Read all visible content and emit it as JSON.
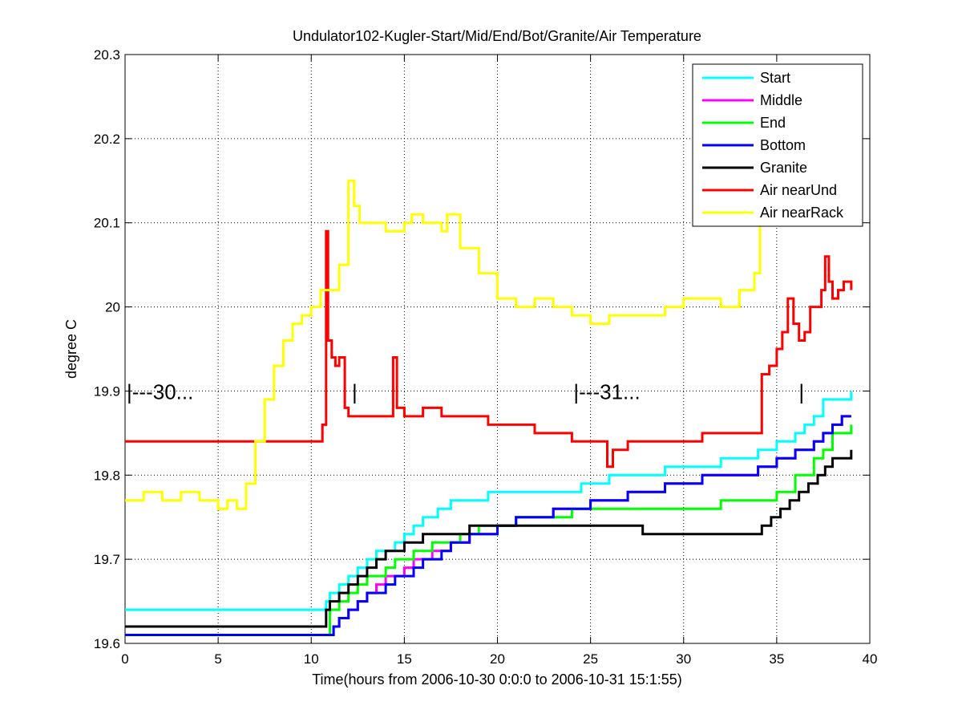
{
  "chart_data": {
    "type": "line",
    "title": "Undulator102-Kugler-Start/Mid/End/Bot/Granite/Air Temperature",
    "xlabel": "Time(hours from 2006-10-30 0:0:0 to 2006-10-31 15:1:55)",
    "ylabel": "degree C",
    "xlim": [
      0,
      40
    ],
    "ylim": [
      19.6,
      20.3
    ],
    "xticks": [
      0,
      5,
      10,
      15,
      20,
      25,
      30,
      35,
      40
    ],
    "xtick_labels": [
      "0",
      "5",
      "10",
      "15",
      "20",
      "25",
      "30",
      "35",
      "40"
    ],
    "yticks": [
      19.6,
      19.7,
      19.8,
      19.9,
      20,
      20.1,
      20.2,
      20.3
    ],
    "ytick_labels": [
      "19.6",
      "19.7",
      "19.8",
      "19.9",
      "20",
      "20.1",
      "20.2",
      "20.3"
    ],
    "grid": true,
    "legend_position": "top-right",
    "annotations": [
      {
        "text": "|---30...",
        "x": 0,
        "y": 19.9
      },
      {
        "text": "|",
        "x": 12.1,
        "y": 19.9
      },
      {
        "text": "|---31...",
        "x": 24,
        "y": 19.9
      },
      {
        "text": "|",
        "x": 36.1,
        "y": 19.9
      }
    ],
    "series": [
      {
        "name": "Start",
        "color": "#00ffff",
        "x": [
          0,
          10.6,
          10.8,
          11,
          11.5,
          12,
          12.5,
          13,
          13.5,
          14,
          14.5,
          15,
          15.5,
          16,
          16.8,
          17.5,
          18.5,
          19.5,
          20.5,
          21.5,
          22.5,
          23.5,
          24.5,
          25,
          26,
          27,
          28,
          29,
          30,
          31,
          32,
          33,
          34,
          35,
          36,
          36.5,
          37,
          37.5,
          38,
          38.5,
          39
        ],
        "y": [
          19.64,
          19.64,
          19.65,
          19.66,
          19.67,
          19.68,
          19.69,
          19.7,
          19.71,
          19.71,
          19.72,
          19.73,
          19.74,
          19.75,
          19.76,
          19.77,
          19.77,
          19.78,
          19.78,
          19.78,
          19.78,
          19.78,
          19.79,
          19.79,
          19.8,
          19.8,
          19.8,
          19.81,
          19.81,
          19.81,
          19.82,
          19.82,
          19.83,
          19.84,
          19.85,
          19.86,
          19.87,
          19.89,
          19.89,
          19.89,
          19.9
        ]
      },
      {
        "name": "Middle",
        "color": "#ff00ff",
        "x": [
          0,
          10.8,
          11.2,
          11.5,
          12,
          12.5,
          13,
          13.5,
          14,
          14.5,
          15,
          15.5,
          16,
          16.5,
          17,
          17.5,
          18,
          18.5,
          19,
          20,
          21,
          22,
          23,
          24,
          25,
          26,
          27,
          28,
          29,
          30,
          31,
          32,
          33,
          34,
          35,
          36,
          37,
          37.5,
          38,
          38.5,
          39
        ],
        "y": [
          19.61,
          19.61,
          19.62,
          19.63,
          19.64,
          19.65,
          19.66,
          19.67,
          19.68,
          19.68,
          19.69,
          19.7,
          19.7,
          19.71,
          19.71,
          19.72,
          19.72,
          19.73,
          19.73,
          19.74,
          19.75,
          19.75,
          19.76,
          19.76,
          19.77,
          19.77,
          19.78,
          19.78,
          19.79,
          19.79,
          19.8,
          19.8,
          19.8,
          19.81,
          19.82,
          19.83,
          19.84,
          19.85,
          19.86,
          19.87,
          19.87
        ]
      },
      {
        "name": "End",
        "color": "#00ff00",
        "x": [
          0,
          10.8,
          11,
          11.5,
          12,
          12.5,
          13,
          13.5,
          14,
          14.5,
          15,
          15.5,
          16,
          16.5,
          17,
          17.5,
          18,
          18.5,
          19,
          20,
          21,
          22,
          23,
          24,
          25,
          26,
          27,
          28,
          29,
          30,
          31,
          32,
          33,
          34,
          35,
          36,
          37,
          37.5,
          38,
          38.5,
          39
        ],
        "y": [
          19.61,
          19.61,
          19.64,
          19.65,
          19.66,
          19.67,
          19.68,
          19.68,
          19.69,
          19.7,
          19.7,
          19.71,
          19.71,
          19.72,
          19.72,
          19.72,
          19.73,
          19.73,
          19.74,
          19.74,
          19.75,
          19.75,
          19.75,
          19.76,
          19.76,
          19.76,
          19.76,
          19.76,
          19.76,
          19.76,
          19.76,
          19.77,
          19.77,
          19.77,
          19.78,
          19.8,
          19.82,
          19.83,
          19.85,
          19.85,
          19.86
        ]
      },
      {
        "name": "Bottom",
        "color": "#0000ff",
        "x": [
          0,
          10.8,
          11.2,
          11.5,
          12,
          12.5,
          13,
          13.5,
          14,
          14.5,
          15,
          15.5,
          16,
          16.5,
          17,
          17.5,
          18,
          18.5,
          19,
          20,
          21,
          22,
          23,
          24,
          25,
          26,
          27,
          28,
          29,
          30,
          31,
          32,
          33,
          34,
          35,
          36,
          37,
          37.5,
          38,
          38.5,
          39
        ],
        "y": [
          19.61,
          19.61,
          19.62,
          19.63,
          19.64,
          19.65,
          19.66,
          19.66,
          19.67,
          19.68,
          19.68,
          19.69,
          19.7,
          19.7,
          19.71,
          19.72,
          19.72,
          19.73,
          19.73,
          19.74,
          19.75,
          19.75,
          19.76,
          19.76,
          19.77,
          19.77,
          19.78,
          19.78,
          19.79,
          19.79,
          19.8,
          19.8,
          19.8,
          19.81,
          19.82,
          19.83,
          19.84,
          19.85,
          19.86,
          19.87,
          19.87
        ]
      },
      {
        "name": "Granite",
        "color": "#000000",
        "x": [
          0,
          10.6,
          10.8,
          11,
          11.5,
          12,
          12.5,
          13,
          13.5,
          14,
          14.5,
          15,
          15.5,
          16,
          16.5,
          17,
          17.5,
          18,
          18.5,
          19,
          20,
          22,
          24,
          26,
          27.6,
          27.8,
          30,
          32,
          33.8,
          34.2,
          34.7,
          35.2,
          35.7,
          36.2,
          36.7,
          37.2,
          37.6,
          38,
          38.5,
          39
        ],
        "y": [
          19.62,
          19.62,
          19.64,
          19.65,
          19.66,
          19.67,
          19.68,
          19.69,
          19.7,
          19.71,
          19.71,
          19.72,
          19.72,
          19.73,
          19.73,
          19.73,
          19.73,
          19.73,
          19.74,
          19.74,
          19.74,
          19.74,
          19.74,
          19.74,
          19.74,
          19.73,
          19.73,
          19.73,
          19.73,
          19.74,
          19.75,
          19.76,
          19.77,
          19.78,
          19.79,
          19.8,
          19.81,
          19.82,
          19.82,
          19.83
        ]
      },
      {
        "name": "Air nearUnd",
        "color": "#ff0000",
        "x": [
          0,
          10.5,
          10.6,
          10.8,
          10.9,
          11.1,
          11.3,
          11.5,
          11.8,
          12,
          12.5,
          13,
          13.5,
          14,
          14.2,
          14.4,
          14.6,
          15,
          16,
          17,
          18,
          19,
          19.5,
          20,
          21,
          22,
          23,
          24,
          25,
          25.8,
          25.9,
          26.2,
          27,
          28,
          29,
          30,
          31,
          32,
          33,
          33.8,
          34.2,
          34.6,
          35,
          35.3,
          35.6,
          35.9,
          36.2,
          36.5,
          36.8,
          37.1,
          37.4,
          37.6,
          37.8,
          38,
          38.3,
          38.6,
          39
        ],
        "y": [
          19.84,
          19.84,
          19.86,
          20.09,
          19.96,
          19.94,
          19.93,
          19.94,
          19.88,
          19.87,
          19.87,
          19.87,
          19.87,
          19.87,
          19.87,
          19.94,
          19.88,
          19.87,
          19.88,
          19.87,
          19.87,
          19.87,
          19.86,
          19.86,
          19.86,
          19.85,
          19.85,
          19.84,
          19.84,
          19.84,
          19.81,
          19.83,
          19.84,
          19.84,
          19.84,
          19.84,
          19.85,
          19.85,
          19.85,
          19.85,
          19.92,
          19.93,
          19.95,
          19.97,
          20.01,
          19.98,
          19.96,
          19.97,
          20.0,
          20.0,
          20.02,
          20.06,
          20.03,
          20.01,
          20.02,
          20.03,
          20.02
        ]
      },
      {
        "name": "Air nearRack",
        "color": "#ffff00",
        "x": [
          0,
          1,
          2,
          3,
          4,
          5,
          5.5,
          6,
          6.5,
          7,
          7.5,
          8,
          8.5,
          9,
          9.5,
          10,
          10.5,
          11,
          11.5,
          12,
          12.3,
          12.6,
          13,
          14,
          15,
          15.4,
          16,
          17,
          17.3,
          18,
          19,
          20,
          21,
          22,
          23,
          24,
          25,
          26,
          27,
          28,
          29,
          30,
          31,
          32,
          33,
          33.8,
          34.1
        ],
        "y": [
          19.77,
          19.78,
          19.77,
          19.78,
          19.77,
          19.76,
          19.77,
          19.76,
          19.79,
          19.84,
          19.89,
          19.93,
          19.96,
          19.98,
          19.99,
          20.0,
          20.02,
          20.02,
          20.05,
          20.15,
          20.12,
          20.1,
          20.1,
          20.09,
          20.1,
          20.11,
          20.1,
          20.09,
          20.11,
          20.07,
          20.04,
          20.01,
          20.0,
          20.01,
          20.0,
          19.99,
          19.98,
          19.99,
          19.99,
          19.99,
          20.0,
          20.01,
          20.01,
          20.0,
          20.02,
          20.04,
          20.1
        ]
      }
    ]
  }
}
